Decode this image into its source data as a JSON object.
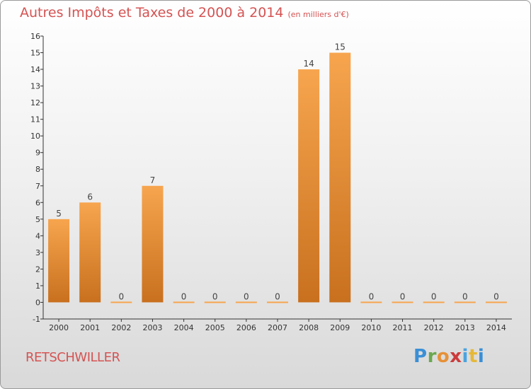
{
  "header": {
    "title": "Autres Impôts et Taxes de 2000 à 2014",
    "unit": "(en milliers d'€)"
  },
  "footer": {
    "place": "RETSCHWILLER",
    "logo_letters": [
      "P",
      "r",
      "o",
      "x",
      "i",
      "t",
      "i"
    ],
    "logo_colors": [
      "#3a8fd6",
      "#6aa84f",
      "#e69138",
      "#cc3b3b",
      "#4aa3df",
      "#e6b838",
      "#3a8fd6"
    ]
  },
  "colors": {
    "bar_light": "#f7a54e",
    "bar_dark": "#c8701e",
    "title": "#d55353"
  },
  "chart_data": {
    "type": "bar",
    "categories": [
      "2000",
      "2001",
      "2002",
      "2003",
      "2004",
      "2005",
      "2006",
      "2007",
      "2008",
      "2009",
      "2010",
      "2011",
      "2012",
      "2013",
      "2014"
    ],
    "values": [
      5,
      6,
      0,
      7,
      0,
      0,
      0,
      0,
      14,
      15,
      0,
      0,
      0,
      0,
      0
    ],
    "data_labels": [
      "5",
      "6",
      "0",
      "7",
      "0",
      "0",
      "0",
      "0",
      "14",
      "15",
      "0",
      "0",
      "0",
      "0",
      "0"
    ],
    "ylim": [
      -1,
      16
    ],
    "yticks": [
      "-1",
      "0",
      "1",
      "2",
      "3",
      "4",
      "5",
      "6",
      "7",
      "8",
      "9",
      "10",
      "11",
      "12",
      "13",
      "14",
      "15",
      "16"
    ],
    "title": "Autres Impôts et Taxes de 2000 à 2014",
    "xlabel": "",
    "ylabel": "",
    "grid": false
  }
}
